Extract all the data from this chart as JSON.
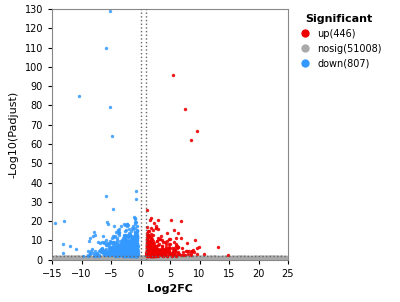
{
  "title": "",
  "xlabel": "Log2FC",
  "ylabel": "-Log10(Padjust)",
  "xlim": [
    -15,
    25
  ],
  "ylim": [
    0,
    130
  ],
  "xticks": [
    -15,
    -10,
    -5,
    0,
    5,
    10,
    15,
    20,
    25
  ],
  "yticks": [
    0,
    10,
    20,
    30,
    40,
    50,
    60,
    70,
    80,
    90,
    100,
    110,
    120,
    130
  ],
  "vline1": 0,
  "vline2": 1,
  "hline": 2,
  "up_color": "#EE0000",
  "down_color": "#3399FF",
  "nosig_color": "#AAAAAA",
  "legend_title": "Significant",
  "legend_labels": [
    "up(446)",
    "nosig(51008)",
    "down(807)"
  ],
  "background_color": "#FFFFFF",
  "n_up": 446,
  "n_down": 807,
  "n_nosig": 51008,
  "seed": 42
}
